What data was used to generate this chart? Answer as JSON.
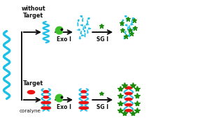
{
  "bg_color": "#ffffff",
  "cyan_color": "#1EC0E8",
  "green_color": "#3DBF2A",
  "green_dark": "#1A8B0A",
  "red_color": "#EE1111",
  "black_color": "#111111",
  "without_target_label": "without\nTarget",
  "target_label": "Target",
  "coralyne_label": "coralyne",
  "exo_label": "Exo I",
  "sg_label": "SG I",
  "figsize": [
    3.19,
    1.89
  ],
  "dpi": 100
}
